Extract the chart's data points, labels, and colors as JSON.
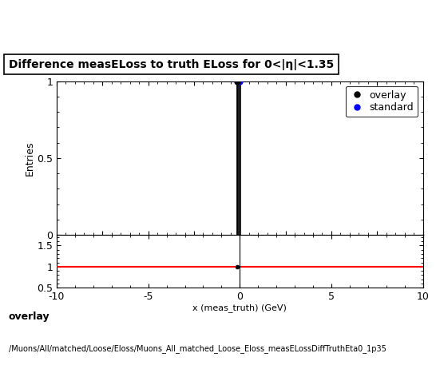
{
  "title": "Difference measELoss to truth ELoss for 0<|η|<1.35",
  "ylabel_main": "Entries",
  "xlim": [
    -10,
    10
  ],
  "ylim_main": [
    0,
    1.0
  ],
  "ylim_ratio": [
    0.5,
    1.75
  ],
  "ratio_yticks": [
    0.5,
    1.0,
    1.5
  ],
  "main_yticks": [
    0,
    0.5,
    1.0
  ],
  "spike_x_overlay": -0.15,
  "spike_x_standard": 0.0,
  "spike_color_overlay": "#000000",
  "spike_color_standard": "#0000ff",
  "marker_color_overlay": "#000000",
  "marker_color_standard": "#0000ff",
  "ratio_line_color": "#ff0000",
  "ratio_line_y": 1.0,
  "vline_color": "#000000",
  "legend_overlay": "overlay",
  "legend_standard": "standard",
  "footer_line1": "overlay",
  "footer_line2": "/Muons/All/matched/Loose/Eloss/Muons_All_matched_Loose_Eloss_measELossDiffTruthEta0_1p35",
  "title_fontsize": 10,
  "axis_fontsize": 9,
  "legend_fontsize": 9,
  "footer_fontsize1": 9,
  "footer_fontsize2": 7,
  "background_color": "#ffffff"
}
